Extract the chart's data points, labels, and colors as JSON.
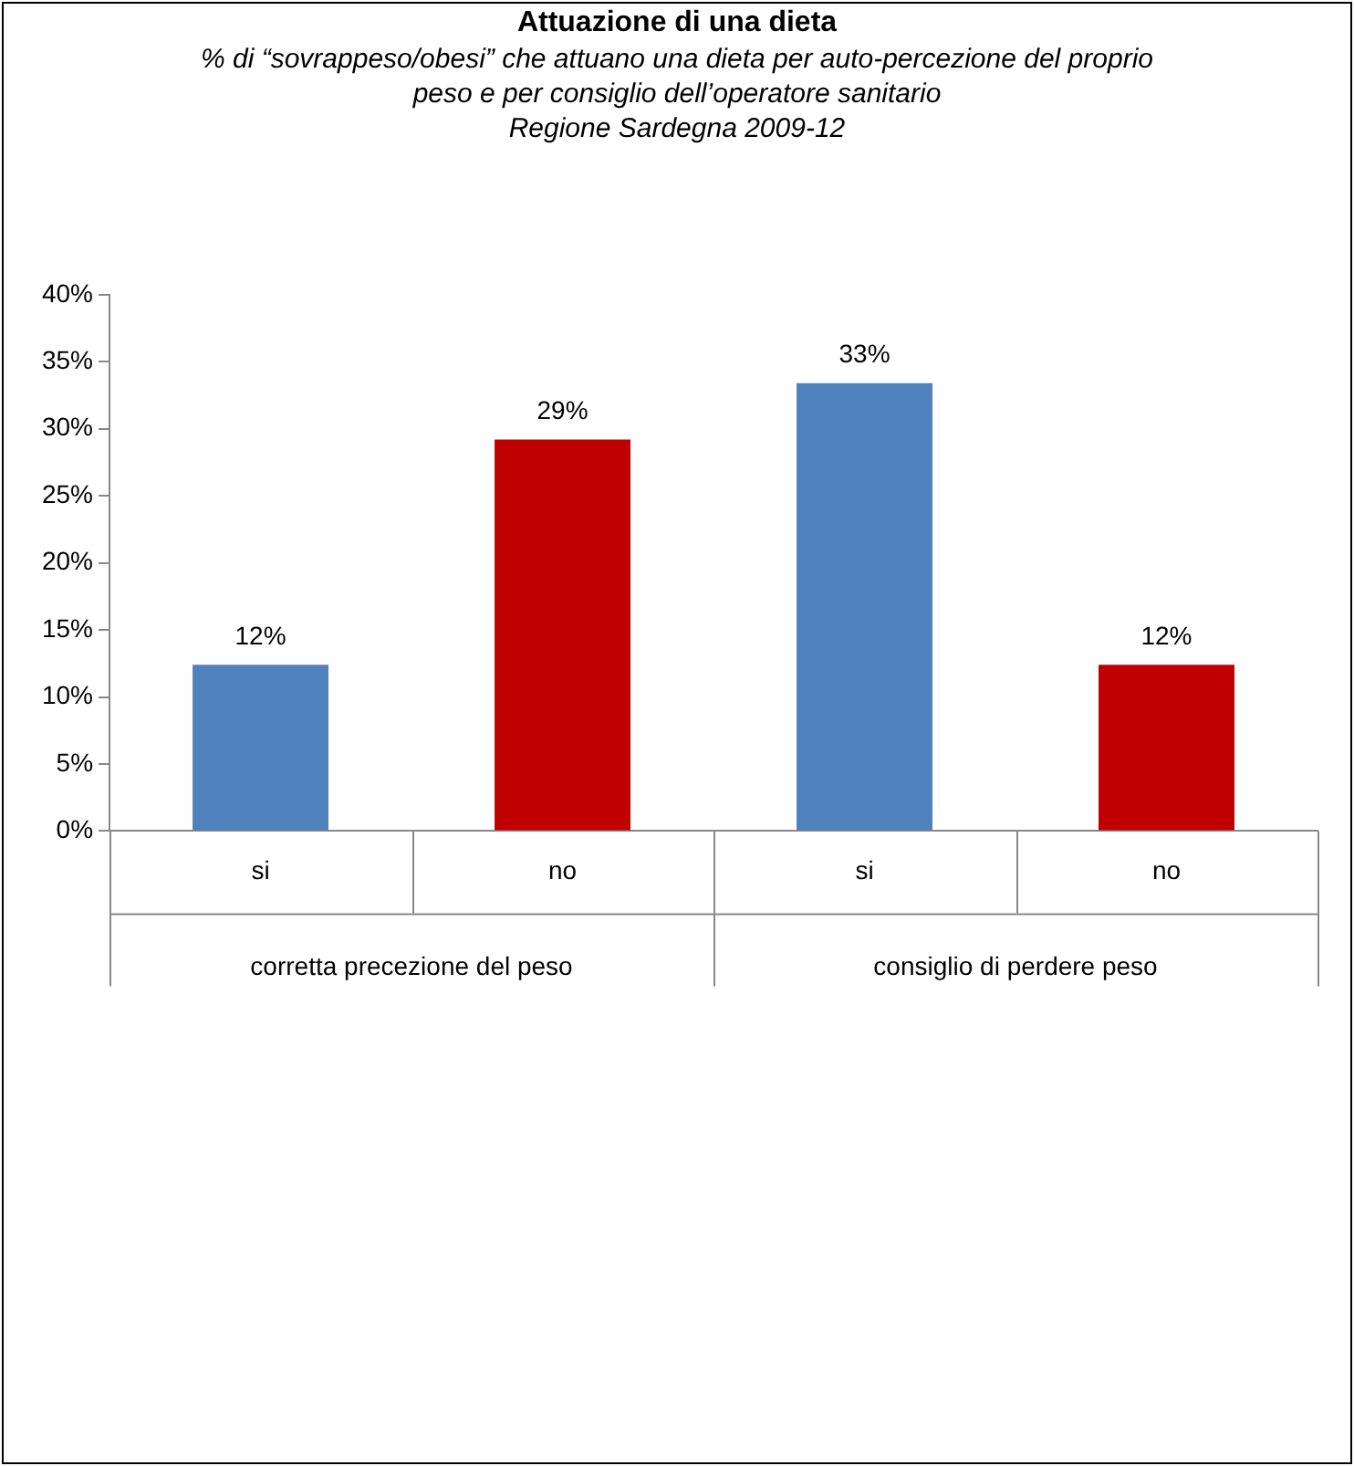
{
  "chart_data": {
    "type": "bar",
    "title": "Attuazione di una dieta",
    "subtitle": "% di “sovrappeso/obesi” che attuano una dieta per auto-percezione del proprio peso e per consiglio dell’operatore sanitario\nRegione Sardegna 2009-12",
    "categories": [
      "si",
      "no",
      "si",
      "no"
    ],
    "values": [
      12.4,
      29.2,
      33.4,
      12.4
    ],
    "colors": [
      "#4f81bd",
      "#c00000",
      "#4f81bd",
      "#c00000"
    ],
    "value_labels": [
      "12%",
      "29%",
      "33%",
      "12%"
    ],
    "ylim": [
      0,
      40
    ],
    "yticks": [
      {
        "value": 0,
        "label": "0%"
      },
      {
        "value": 5,
        "label": "5%"
      },
      {
        "value": 10,
        "label": "10%"
      },
      {
        "value": 15,
        "label": "15%"
      },
      {
        "value": 20,
        "label": "20%"
      },
      {
        "value": 25,
        "label": "25%"
      },
      {
        "value": 30,
        "label": "30%"
      },
      {
        "value": 35,
        "label": "35%"
      },
      {
        "value": 40,
        "label": "40%"
      }
    ],
    "annotations": [
      "corretta precezione del peso",
      "consiglio di perdere peso"
    ],
    "grid": false,
    "legend": false
  }
}
